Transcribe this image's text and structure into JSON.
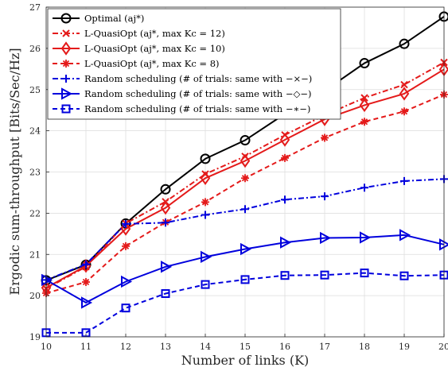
{
  "chart_data": {
    "type": "line",
    "x": [
      10,
      11,
      12,
      13,
      14,
      15,
      16,
      17,
      18,
      19,
      20
    ],
    "xlim": [
      10,
      20
    ],
    "ylim": [
      19,
      27
    ],
    "xticks": [
      "10",
      "11",
      "12",
      "13",
      "14",
      "15",
      "16",
      "17",
      "18",
      "19",
      "20"
    ],
    "yticks": [
      "19",
      "20",
      "21",
      "22",
      "23",
      "24",
      "25",
      "26",
      "27"
    ],
    "xlabel": "Number of links (K)",
    "ylabel": "Ergodic sum-throughput [Bits/Sec/Hz]",
    "grid": true,
    "legend_position": "top-left",
    "series": [
      {
        "name": "Optimal (aj*)",
        "color": "#000000",
        "dash": "solid",
        "marker": "circle",
        "values": [
          20.37,
          20.75,
          21.75,
          22.58,
          23.32,
          23.77,
          24.41,
          24.97,
          25.64,
          26.11,
          26.77
        ]
      },
      {
        "name": "L-QuasiOpt (aj*, max Kc = 12)",
        "color": "#e41a1a",
        "dash": "dashdot",
        "marker": "x",
        "values": [
          20.17,
          20.7,
          21.75,
          22.28,
          22.95,
          23.38,
          23.9,
          24.38,
          24.8,
          25.12,
          25.66
        ]
      },
      {
        "name": "L-QuasiOpt (aj*, max Kc = 10)",
        "color": "#e41a1a",
        "dash": "solid",
        "marker": "diamond",
        "values": [
          20.19,
          20.72,
          21.62,
          22.13,
          22.85,
          23.27,
          23.78,
          24.28,
          24.62,
          24.9,
          25.49
        ]
      },
      {
        "name": "L-QuasiOpt (aj*, max Kc = 8)",
        "color": "#e41a1a",
        "dash": "dashed",
        "marker": "asterisk",
        "values": [
          20.06,
          20.33,
          21.2,
          21.78,
          22.27,
          22.85,
          23.34,
          23.83,
          24.22,
          24.47,
          24.88
        ]
      },
      {
        "name": "Random scheduling (# of trials: same with −×−)",
        "color": "#0000dd",
        "dash": "dashdot",
        "marker": "plus",
        "values": [
          20.38,
          20.76,
          21.74,
          21.77,
          21.96,
          22.1,
          22.33,
          22.41,
          22.62,
          22.78,
          22.83
        ]
      },
      {
        "name": "Random scheduling (# of trials: same with −◇−)",
        "color": "#0000dd",
        "dash": "solid",
        "marker": "triangle-right",
        "values": [
          20.38,
          19.83,
          20.34,
          20.7,
          20.94,
          21.13,
          21.29,
          21.4,
          21.41,
          21.47,
          21.24
        ]
      },
      {
        "name": "Random scheduling (# of trials: same with −∗−)",
        "color": "#0000dd",
        "dash": "dashed",
        "marker": "square",
        "values": [
          19.1,
          19.1,
          19.7,
          20.05,
          20.27,
          20.39,
          20.49,
          20.5,
          20.55,
          20.48,
          20.5
        ]
      }
    ]
  }
}
